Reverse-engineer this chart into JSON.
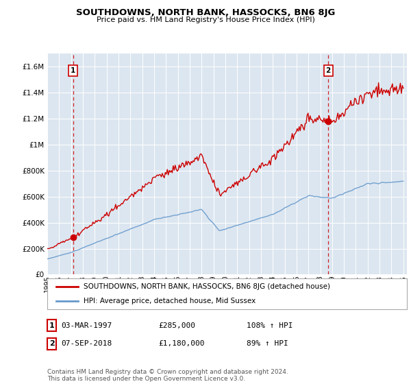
{
  "title": "SOUTHDOWNS, NORTH BANK, HASSOCKS, BN6 8JG",
  "subtitle": "Price paid vs. HM Land Registry's House Price Index (HPI)",
  "legend_line1": "SOUTHDOWNS, NORTH BANK, HASSOCKS, BN6 8JG (detached house)",
  "legend_line2": "HPI: Average price, detached house, Mid Sussex",
  "annotation1_date": "03-MAR-1997",
  "annotation1_price": "£285,000",
  "annotation1_hpi": "108% ↑ HPI",
  "annotation2_date": "07-SEP-2018",
  "annotation2_price": "£1,180,000",
  "annotation2_hpi": "89% ↑ HPI",
  "footer": "Contains HM Land Registry data © Crown copyright and database right 2024.\nThis data is licensed under the Open Government Licence v3.0.",
  "red_color": "#cc0000",
  "blue_color": "#6699cc",
  "bg_color": "#dce6f0",
  "sale1_year": 1997.17,
  "sale1_val": 285000,
  "sale2_year": 2018.67,
  "sale2_val": 1180000
}
